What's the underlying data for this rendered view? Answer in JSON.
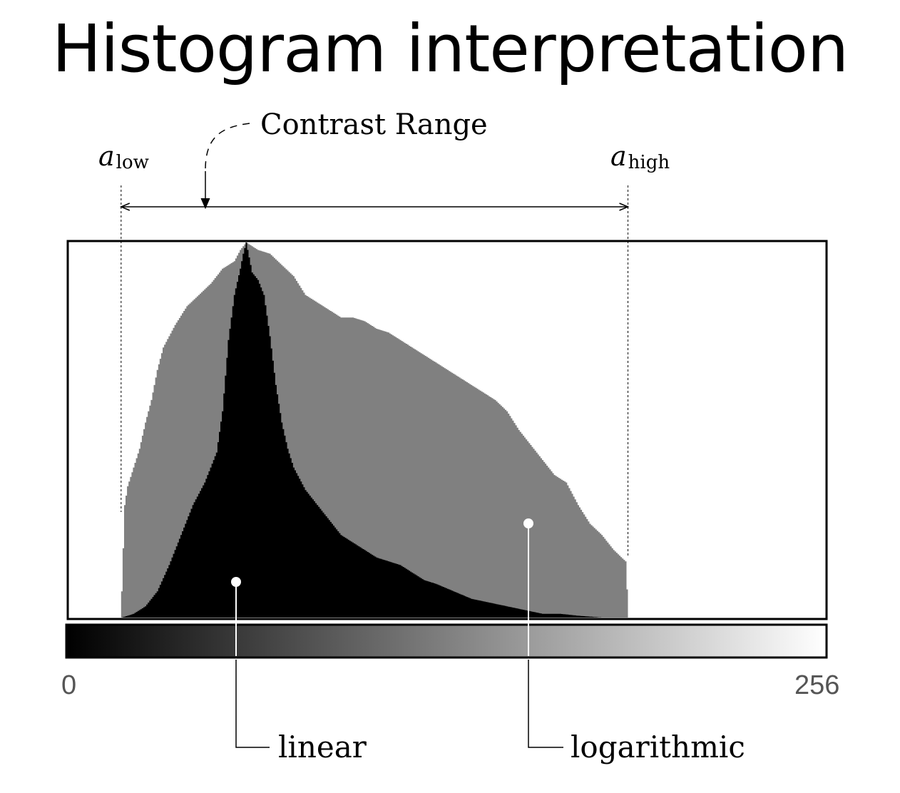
{
  "slide": {
    "title": "Histogram interpretation"
  },
  "annotations": {
    "contrast_range": "Contrast Range",
    "a_low_base": "a",
    "a_low_sub": "low",
    "a_high_base": "a",
    "a_high_sub": "high",
    "linear_label": "linear",
    "log_label": "logarithmic"
  },
  "axis": {
    "min_label": "0",
    "max_label": "256"
  },
  "colors": {
    "linear": "#000000",
    "logarithmic": "#808080",
    "frame": "#000000"
  },
  "chart_data": {
    "type": "bar",
    "x_range": [
      0,
      256
    ],
    "y_range": [
      0,
      1
    ],
    "a_low": 18,
    "a_high": 189,
    "series": [
      {
        "name": "linear",
        "x": [
          18,
          22,
          26,
          30,
          34,
          38,
          42,
          46,
          50,
          52,
          54,
          56,
          58,
          59,
          60,
          62,
          64,
          66,
          68,
          70,
          72,
          74,
          76,
          80,
          84,
          88,
          92,
          96,
          100,
          104,
          108,
          112,
          116,
          120,
          124,
          130,
          136,
          142,
          148,
          154,
          160,
          166,
          172,
          180,
          186,
          190
        ],
        "values": [
          0.0,
          0.01,
          0.03,
          0.07,
          0.14,
          0.22,
          0.3,
          0.36,
          0.44,
          0.55,
          0.74,
          0.86,
          0.93,
          0.97,
          1.0,
          0.92,
          0.9,
          0.86,
          0.75,
          0.62,
          0.52,
          0.45,
          0.4,
          0.34,
          0.3,
          0.26,
          0.22,
          0.2,
          0.18,
          0.16,
          0.15,
          0.14,
          0.12,
          0.1,
          0.09,
          0.07,
          0.05,
          0.04,
          0.03,
          0.02,
          0.01,
          0.01,
          0.005,
          0.0,
          0.0,
          0.0
        ]
      },
      {
        "name": "logarithmic",
        "x": [
          18,
          19,
          20,
          22,
          24,
          26,
          28,
          30,
          32,
          36,
          40,
          44,
          48,
          52,
          56,
          58,
          60,
          62,
          64,
          68,
          72,
          76,
          80,
          84,
          88,
          92,
          96,
          100,
          104,
          108,
          112,
          116,
          120,
          124,
          128,
          132,
          136,
          140,
          144,
          148,
          152,
          156,
          160,
          164,
          168,
          172,
          176,
          180,
          184,
          188,
          189
        ],
        "values": [
          0.07,
          0.3,
          0.35,
          0.4,
          0.45,
          0.52,
          0.58,
          0.66,
          0.72,
          0.78,
          0.83,
          0.86,
          0.89,
          0.93,
          0.95,
          0.98,
          1.0,
          0.99,
          0.98,
          0.97,
          0.94,
          0.91,
          0.86,
          0.84,
          0.82,
          0.8,
          0.8,
          0.79,
          0.77,
          0.76,
          0.74,
          0.72,
          0.7,
          0.68,
          0.66,
          0.64,
          0.62,
          0.6,
          0.58,
          0.55,
          0.5,
          0.46,
          0.42,
          0.38,
          0.36,
          0.3,
          0.25,
          0.22,
          0.18,
          0.15,
          0.0
        ]
      }
    ]
  }
}
